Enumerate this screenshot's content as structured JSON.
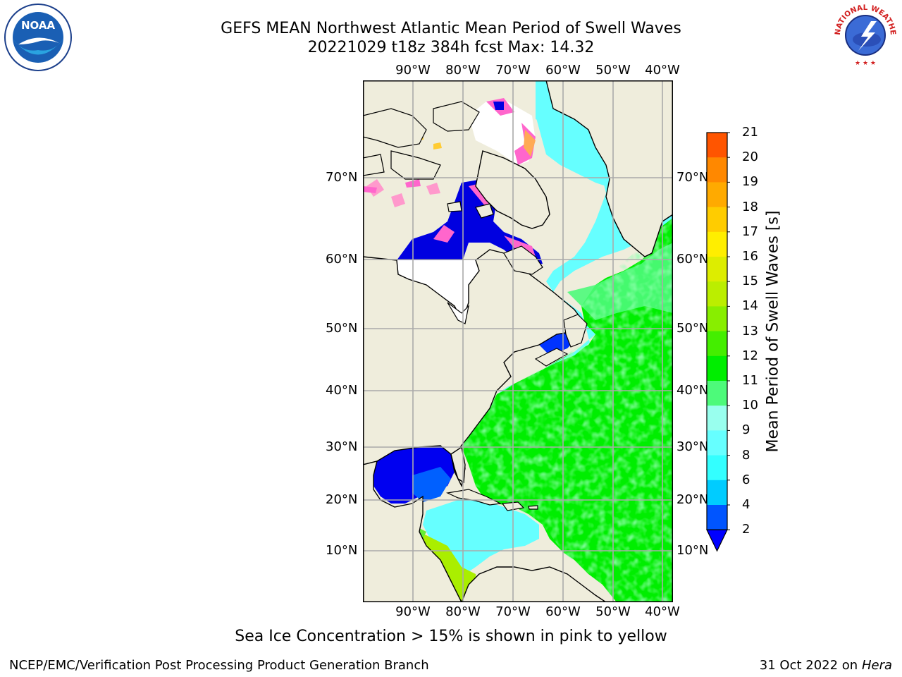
{
  "header": {
    "title": "GEFS MEAN Northwest Atlantic Mean Period of Swell Waves",
    "subtitle": "20221029 t18z 384h fcst   Max: 14.32"
  },
  "logos": {
    "noaa_text": "NOAA",
    "nws_text": "NATIONAL WEATHER SERVICE"
  },
  "map": {
    "lon_labels": [
      "90°W",
      "80°W",
      "70°W",
      "60°W",
      "50°W",
      "40°W"
    ],
    "lat_labels": [
      "70°N",
      "60°N",
      "50°N",
      "40°N",
      "30°N",
      "20°N",
      "10°N"
    ],
    "land_color": "#efeddc",
    "ocean_colors": {
      "green": "#00ee00",
      "light_green": "#4dfa7a",
      "cyan": "#66ffff",
      "blue": "#0033ff",
      "dark_blue": "#0000e0",
      "pink": "#ff66cc"
    }
  },
  "colorbar": {
    "label": "Mean Period of Swell Waves [s]",
    "ticks": [
      "2",
      "4",
      "6",
      "8",
      "9",
      "10",
      "11",
      "12",
      "13",
      "14",
      "15",
      "16",
      "17",
      "18",
      "19",
      "20",
      "21"
    ],
    "colors": [
      "#0055ff",
      "#00ccff",
      "#33ffff",
      "#66ffff",
      "#99ffee",
      "#4dfa7a",
      "#00ee00",
      "#44ee00",
      "#88ee00",
      "#bbee00",
      "#dded00",
      "#ffee00",
      "#ffcc00",
      "#ffaa00",
      "#ff8800",
      "#ff5500",
      "#ff2200",
      "#ff0000"
    ],
    "under_color": "#0000ff"
  },
  "caption": "Sea Ice Concentration > 15% is shown in pink to yellow",
  "footer": {
    "left": "NCEP/EMC/Verification Post Processing Product Generation Branch",
    "right_date": "31 Oct 2022 on ",
    "right_host": "Hera"
  }
}
